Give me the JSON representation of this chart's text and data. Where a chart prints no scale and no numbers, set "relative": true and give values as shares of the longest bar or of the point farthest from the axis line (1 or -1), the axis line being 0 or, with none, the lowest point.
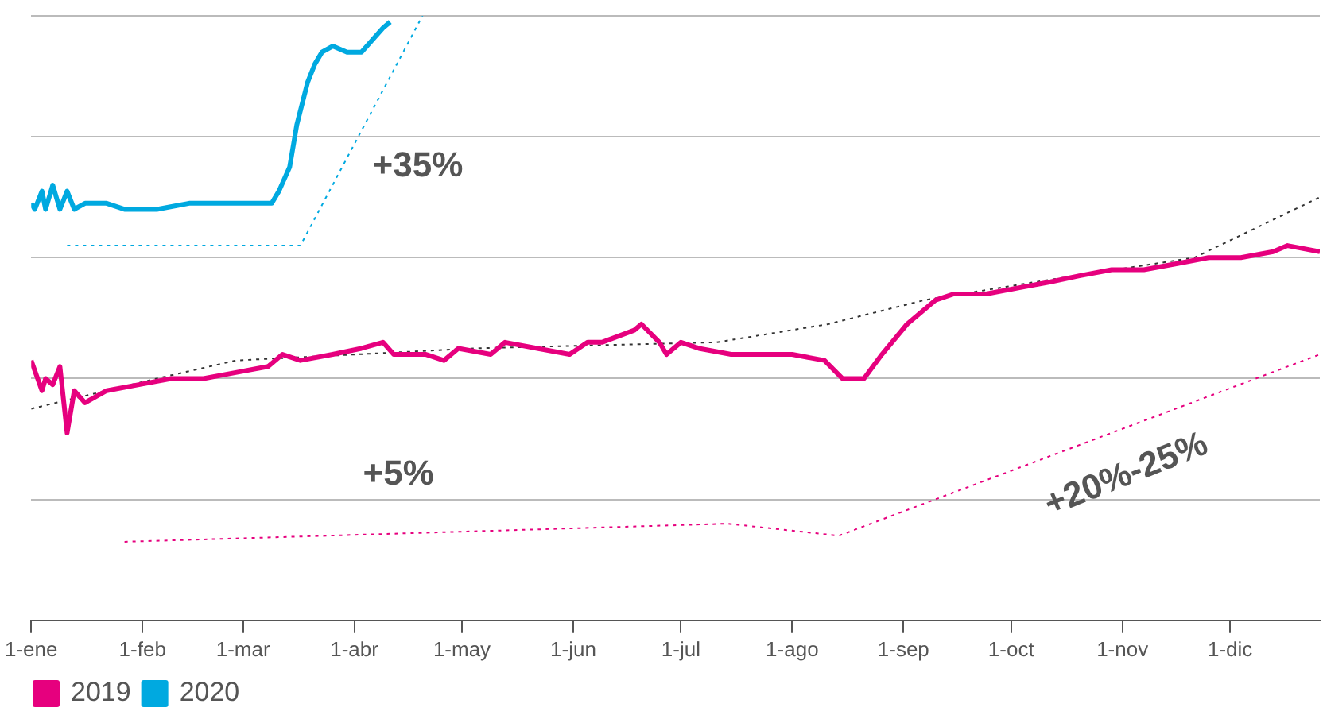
{
  "chart_data": {
    "type": "line",
    "relative": true,
    "grid": "y",
    "legend": "bottom left",
    "line_style": "solid",
    "marker": "none",
    "xlim": [
      "--01-01",
      "--12-26"
    ],
    "xticks": [
      {
        "value": "--01-01",
        "label": "1-ene"
      },
      {
        "value": "--02-01",
        "label": "1-feb"
      },
      {
        "value": "--03-01",
        "label": "1-mar"
      },
      {
        "value": "--04-01",
        "label": "1-abr"
      },
      {
        "value": "--05-01",
        "label": "1-may"
      },
      {
        "value": "--06-01",
        "label": "1-jun"
      },
      {
        "value": "--07-01",
        "label": "1-jul"
      },
      {
        "value": "--08-01",
        "label": "1-ago"
      },
      {
        "value": "--09-01",
        "label": "1-sep"
      },
      {
        "value": "--10-01",
        "label": "1-oct"
      },
      {
        "value": "--11-01",
        "label": "1-nov"
      },
      {
        "value": "--12-01",
        "label": "1-dic"
      }
    ],
    "annotations": [
      "+35%",
      "+5%",
      "+20%-25%"
    ],
    "series": [
      {
        "name": "2019",
        "color": "#e6007e",
        "x": [
          "--01-01",
          "--01-04",
          "--01-05",
          "--01-07",
          "--01-09",
          "--01-11",
          "--01-13",
          "--01-16",
          "--01-22",
          "--01-31",
          "--02-09",
          "--02-18",
          "--02-27",
          "--03-08",
          "--03-12",
          "--03-17",
          "--03-26",
          "--04-03",
          "--04-09",
          "--04-12",
          "--04-21",
          "--04-26",
          "--04-30",
          "--05-09",
          "--05-13",
          "--05-22",
          "--05-31",
          "--06-05",
          "--06-09",
          "--06-18",
          "--06-20",
          "--06-25",
          "--06-27",
          "--07-01",
          "--07-06",
          "--07-15",
          "--07-24",
          "--08-01",
          "--08-10",
          "--08-15",
          "--08-19",
          "--08-21",
          "--08-26",
          "--09-02",
          "--09-06",
          "--09-10",
          "--09-15",
          "--09-24",
          "--10-03",
          "--10-12",
          "--10-20",
          "--10-29",
          "--11-07",
          "--11-16",
          "--11-25",
          "--12-04",
          "--12-13",
          "--12-17",
          "--12-26"
        ],
        "values": [
          0.43,
          0.38,
          0.4,
          0.39,
          0.42,
          0.31,
          0.38,
          0.36,
          0.38,
          0.39,
          0.4,
          0.4,
          0.41,
          0.42,
          0.44,
          0.43,
          0.44,
          0.45,
          0.46,
          0.44,
          0.44,
          0.43,
          0.45,
          0.44,
          0.46,
          0.45,
          0.44,
          0.46,
          0.46,
          0.48,
          0.49,
          0.46,
          0.44,
          0.46,
          0.45,
          0.44,
          0.44,
          0.44,
          0.43,
          0.4,
          0.4,
          0.4,
          0.44,
          0.49,
          0.51,
          0.53,
          0.54,
          0.54,
          0.55,
          0.56,
          0.57,
          0.58,
          0.58,
          0.59,
          0.6,
          0.6,
          0.61,
          0.62,
          0.61
        ]
      },
      {
        "name": "2020",
        "color": "#00a9e0",
        "x": [
          "--01-01",
          "--01-02",
          "--01-04",
          "--01-05",
          "--01-07",
          "--01-09",
          "--01-11",
          "--01-13",
          "--01-16",
          "--01-22",
          "--01-27",
          "--02-05",
          "--02-14",
          "--02-22",
          "--03-03",
          "--03-09",
          "--03-11",
          "--03-14",
          "--03-16",
          "--03-19",
          "--03-21",
          "--03-23",
          "--03-26",
          "--03-30",
          "--04-03",
          "--04-06",
          "--04-09",
          "--04-11"
        ],
        "values": [
          0.69,
          0.68,
          0.71,
          0.68,
          0.72,
          0.68,
          0.71,
          0.68,
          0.69,
          0.69,
          0.68,
          0.68,
          0.69,
          0.69,
          0.69,
          0.69,
          0.71,
          0.75,
          0.82,
          0.89,
          0.92,
          0.94,
          0.95,
          0.94,
          0.94,
          0.96,
          0.98,
          0.99
        ]
      },
      {
        "type": "line",
        "color": "#333333",
        "line_style": "dotted",
        "x": [
          "--01-01",
          "--02-05",
          "--02-27",
          "--05-05",
          "--07-11",
          "--08-11",
          "--09-07",
          "--10-08",
          "--11-21",
          "--12-26"
        ],
        "values": [
          0.35,
          0.4,
          0.43,
          0.45,
          0.46,
          0.49,
          0.53,
          0.56,
          0.6,
          0.7
        ]
      },
      {
        "type": "line",
        "color": "#00a9e0",
        "line_style": "dotted",
        "x": [
          "--01-11",
          "--03-17",
          "--04-20"
        ],
        "values": [
          0.62,
          0.62,
          1
        ]
      },
      {
        "type": "line",
        "color": "#e6007e",
        "line_style": "dotted",
        "x": [
          "--01-27",
          "--07-14",
          "--08-14",
          "--12-26"
        ],
        "values": [
          0.13,
          0.16,
          0.14,
          0.44
        ]
      }
    ]
  }
}
